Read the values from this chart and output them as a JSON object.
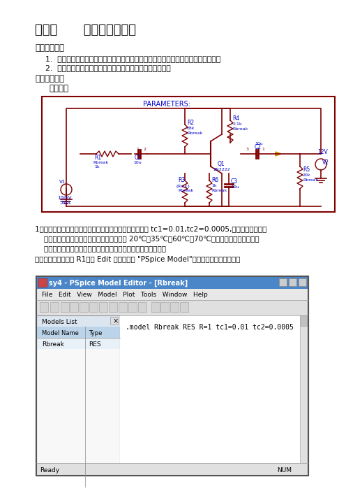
{
  "title": "实验四      电路的参数分析",
  "section1_title": "一、实验目的",
  "item1": "1.  了解对电子电路进行各种参数分析（包括全局参数，模型参数以及温度）的功能。",
  "item2": "2.  通过对实际电路进行各种参数分析，掌控分析设置方法。",
  "section2_title": "二、实验内容",
  "circuit_label": "电路图：",
  "para_text1": "1、针对上图的单管放大电路，设置其电阻温度参数系数为 tc1=0.01,tc2=0.0005,在交流分析的基础",
  "para_text2": "    上，对该电路进行温度分析，温度值设定为 20℃、35℃、60℃、70℃，观察输出电压最大值的",
  "para_text3": "    变化，列表给出在不同温度时单管放大电路输出电压的最大值。",
  "para_text4": "设置电路参数：选中 R1，在 Edit 菜单下选择 \"PSpice Model\"，输入温度系数。如图：",
  "window_title": "sy4 - PSpice Model Editor - [Rbreak]",
  "menu_items": "File   Edit   View   Model   Plot   Tools   Window   Help",
  "model_text": ".model Rbreak RES R=1 tc1=0.01 tc2=0.0005",
  "model_name": "Rbreak",
  "model_type": "RES",
  "bg_color": "#ffffff",
  "text_color": "#000000",
  "title_color": "#000000",
  "circuit_border_color": "#800000",
  "blue_color": "#0000cc",
  "window_bg": "#f0f0f0",
  "window_title_bg": "#4a86c8",
  "toolbar_bg": "#e8e8e8",
  "list_bg": "#ffffff"
}
